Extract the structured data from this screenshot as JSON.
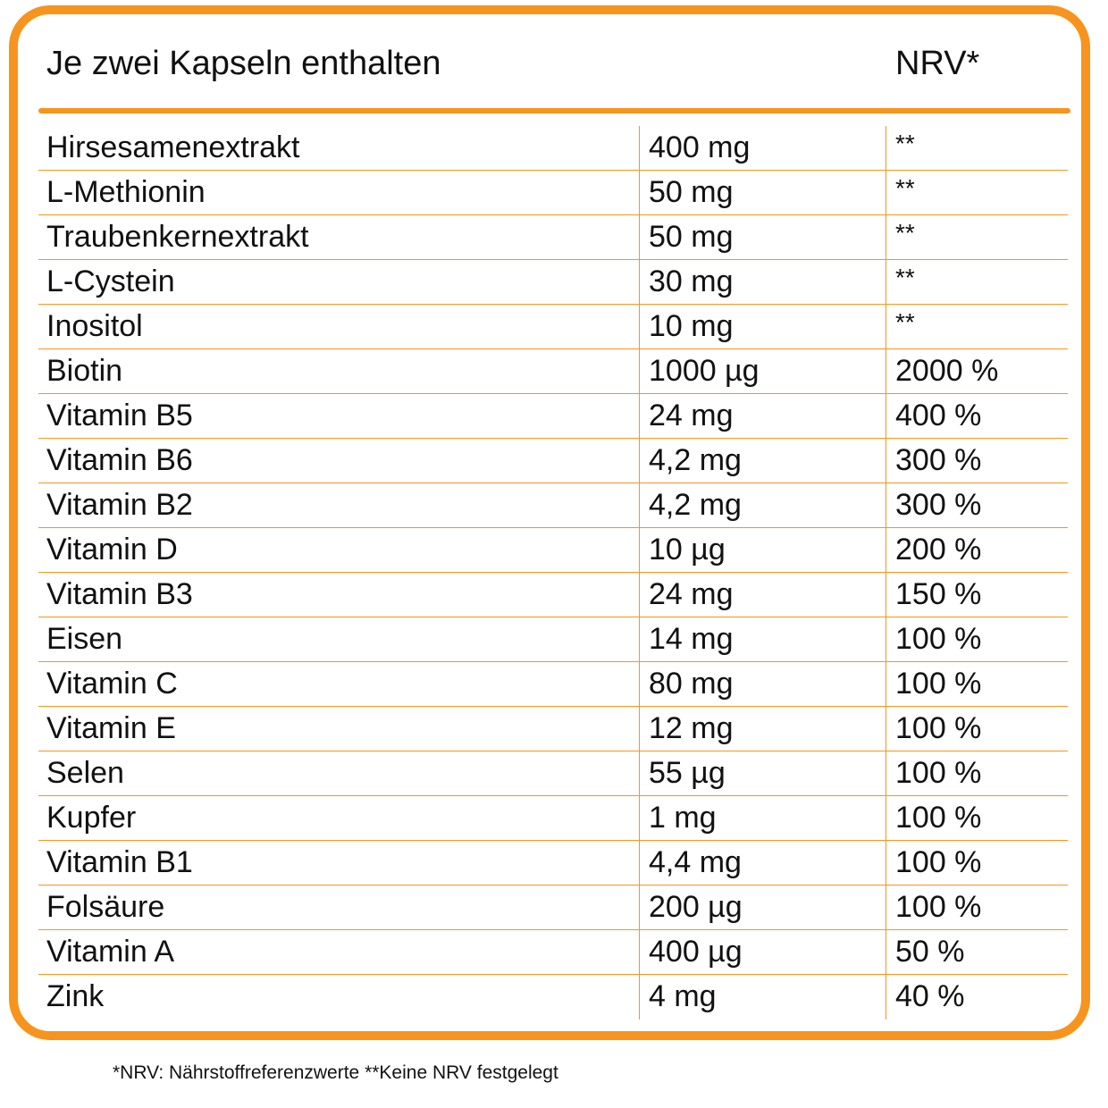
{
  "header": {
    "title": "Je zwei Kapseln enthalten",
    "nrv_label": "NRV*"
  },
  "rows": [
    {
      "name": "Hirsesamenextrakt",
      "amount": "400 mg",
      "nrv": "**"
    },
    {
      "name": "L-Methionin",
      "amount": "50 mg",
      "nrv": "**"
    },
    {
      "name": "Traubenkernextrakt",
      "amount": "50 mg",
      "nrv": "**"
    },
    {
      "name": "L-Cystein",
      "amount": "30 mg",
      "nrv": "**"
    },
    {
      "name": "Inositol",
      "amount": "10 mg",
      "nrv": "**"
    },
    {
      "name": "Biotin",
      "amount": "1000 µg",
      "nrv": "2000 %"
    },
    {
      "name": "Vitamin B5",
      "amount": "24 mg",
      "nrv": "400 %"
    },
    {
      "name": "Vitamin B6",
      "amount": "4,2 mg",
      "nrv": "300 %"
    },
    {
      "name": "Vitamin B2",
      "amount": "4,2 mg",
      "nrv": "300 %"
    },
    {
      "name": "Vitamin D",
      "amount": "10 µg",
      "nrv": "200 %"
    },
    {
      "name": "Vitamin B3",
      "amount": "24 mg",
      "nrv": "150 %"
    },
    {
      "name": "Eisen",
      "amount": "14 mg",
      "nrv": "100 %"
    },
    {
      "name": "Vitamin C",
      "amount": "80 mg",
      "nrv": "100 %"
    },
    {
      "name": "Vitamin E",
      "amount": "12 mg",
      "nrv": "100 %"
    },
    {
      "name": "Selen",
      "amount": "55 µg",
      "nrv": "100 %"
    },
    {
      "name": "Kupfer",
      "amount": "1 mg",
      "nrv": "100 %"
    },
    {
      "name": "Vitamin B1",
      "amount": "4,4 mg",
      "nrv": "100 %"
    },
    {
      "name": "Folsäure",
      "amount": "200 µg",
      "nrv": "100 %"
    },
    {
      "name": "Vitamin A",
      "amount": "400 µg",
      "nrv": "50 %"
    },
    {
      "name": "Zink",
      "amount": "4 mg",
      "nrv": "40 %"
    }
  ],
  "footnote": "*NRV: Nährstoffreferenzwerte **Keine NRV festgelegt",
  "colors": {
    "accent": "#f7941d",
    "text": "#111111",
    "background": "#ffffff"
  }
}
